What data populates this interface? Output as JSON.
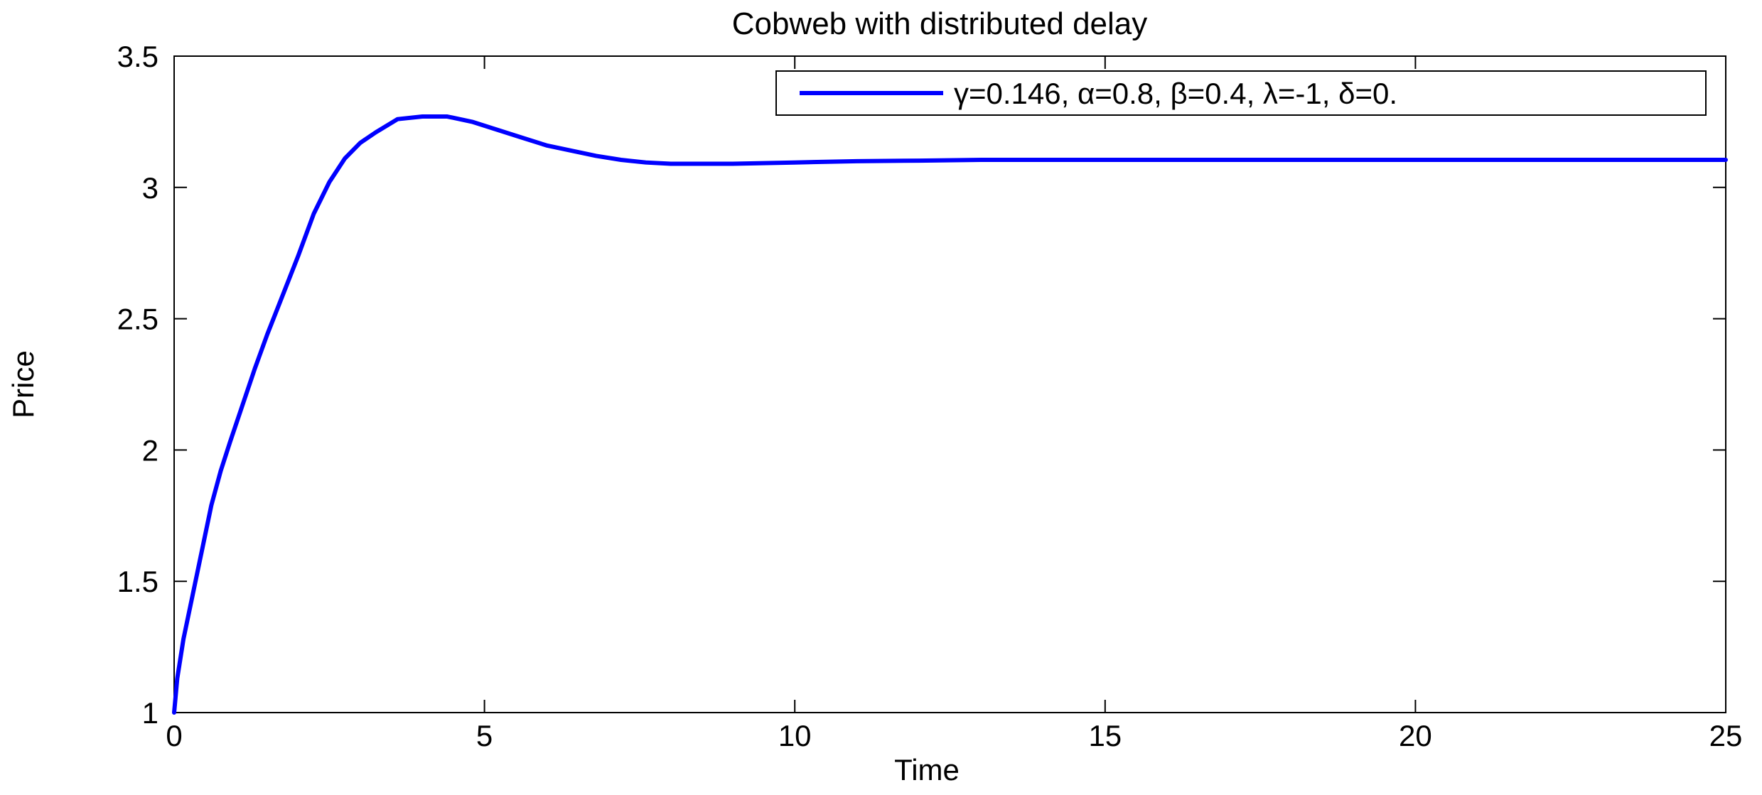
{
  "chart_data": {
    "type": "line",
    "title": "Cobweb with distributed delay",
    "xlabel": "Time",
    "ylabel": "Price",
    "xlim": [
      0,
      25
    ],
    "ylim": [
      1,
      3.5
    ],
    "x_ticks": [
      0,
      5,
      10,
      15,
      20,
      25
    ],
    "y_ticks": [
      1,
      1.5,
      2,
      2.5,
      3,
      3.5
    ],
    "x_tick_labels": [
      "0",
      "5",
      "10",
      "15",
      "20",
      "25"
    ],
    "y_tick_labels": [
      "1",
      "1.5",
      "2",
      "2.5",
      "3",
      "3.5"
    ],
    "grid": false,
    "legend_position": "top-right",
    "series": [
      {
        "name": "γ=0.146, α=0.8, β=0.4, λ=-1, δ=0.",
        "color": "#0000ff",
        "x": [
          0,
          0.05,
          0.15,
          0.3,
          0.45,
          0.6,
          0.75,
          0.9,
          1.1,
          1.3,
          1.5,
          1.75,
          2.0,
          2.25,
          2.5,
          2.75,
          3.0,
          3.25,
          3.6,
          4.0,
          4.4,
          4.8,
          5.2,
          5.6,
          6.0,
          6.4,
          6.8,
          7.2,
          7.6,
          8.0,
          9.0,
          10.0,
          11.0,
          12.0,
          13.0,
          15.0,
          18.0,
          22.0,
          25.0
        ],
        "y": [
          1.0,
          1.13,
          1.28,
          1.45,
          1.62,
          1.79,
          1.92,
          2.03,
          2.17,
          2.31,
          2.44,
          2.59,
          2.74,
          2.9,
          3.02,
          3.11,
          3.17,
          3.21,
          3.26,
          3.27,
          3.27,
          3.25,
          3.22,
          3.19,
          3.16,
          3.14,
          3.12,
          3.105,
          3.095,
          3.09,
          3.09,
          3.095,
          3.1,
          3.102,
          3.105,
          3.105,
          3.105,
          3.105,
          3.105
        ]
      }
    ]
  }
}
